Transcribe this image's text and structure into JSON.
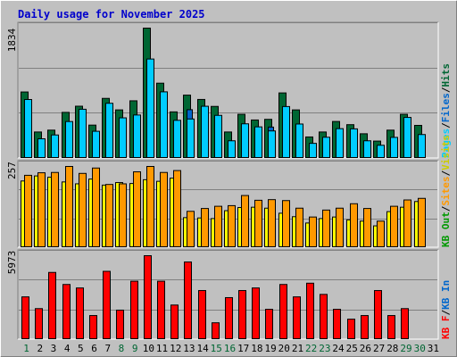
{
  "title": "Daily usage for November 2025",
  "colors": {
    "background": "#c0c0c0",
    "plot_bg": "#c0c0c0",
    "grid": "#808080",
    "title": "#0000cc",
    "hits": "#006633",
    "files": "#0066cc",
    "pages": "#00ccff",
    "visits": "#ffff00",
    "sites": "#ff9900",
    "kbytes": "#ff0000",
    "day_weekday": "#000000",
    "day_weekend": "#006633"
  },
  "chart_data": [
    {
      "type": "bar",
      "title": "Daily usage for November 2025",
      "ylabel": "Pages / Files / Hits",
      "ymax_label": "1834",
      "ylim": [
        0,
        1834
      ],
      "categories": [
        "1",
        "2",
        "3",
        "4",
        "5",
        "6",
        "7",
        "8",
        "9",
        "10",
        "11",
        "12",
        "13",
        "14",
        "15",
        "16",
        "17",
        "18",
        "19",
        "20",
        "21",
        "22",
        "23",
        "24",
        "25",
        "26",
        "27",
        "28",
        "29",
        "30",
        "31"
      ],
      "series": [
        {
          "name": "Hits",
          "values": [
            935,
            372,
            398,
            648,
            735,
            469,
            845,
            683,
            811,
            1834,
            1059,
            655,
            891,
            830,
            732,
            372,
            621,
            541,
            550,
            922,
            683,
            302,
            372,
            520,
            475,
            347,
            244,
            398,
            621,
            465,
            0
          ]
        },
        {
          "name": "Files",
          "values": [
            612,
            197,
            270,
            460,
            560,
            287,
            604,
            466,
            552,
            951,
            802,
            498,
            686,
            598,
            573,
            226,
            475,
            415,
            441,
            631,
            426,
            184,
            232,
            383,
            373,
            217,
            159,
            270,
            454,
            333,
            0
          ]
        },
        {
          "name": "Pages",
          "values": [
            829,
            276,
            330,
            519,
            692,
            382,
            776,
            571,
            611,
            1399,
            937,
            536,
            555,
            734,
            606,
            248,
            487,
            444,
            387,
            730,
            484,
            212,
            298,
            419,
            416,
            248,
            185,
            296,
            577,
            336,
            0
          ]
        }
      ]
    },
    {
      "type": "bar",
      "ylabel": "Visits / Sites",
      "ymax_label": "257",
      "ylim": [
        0,
        257
      ],
      "categories": [
        "1",
        "2",
        "3",
        "4",
        "5",
        "6",
        "7",
        "8",
        "9",
        "10",
        "11",
        "12",
        "13",
        "14",
        "15",
        "16",
        "17",
        "18",
        "19",
        "20",
        "21",
        "22",
        "23",
        "24",
        "25",
        "26",
        "27",
        "28",
        "29",
        "30",
        "31"
      ],
      "series": [
        {
          "name": "Visits",
          "values": [
            211,
            227,
            223,
            208,
            202,
            217,
            198,
            206,
            203,
            215,
            210,
            220,
            95,
            94,
            92,
            117,
            127,
            128,
            125,
            109,
            98,
            78,
            92,
            97,
            88,
            84,
            69,
            114,
            128,
            146,
            0
          ]
        },
        {
          "name": "Sites",
          "values": [
            229,
            237,
            238,
            257,
            235,
            252,
            200,
            202,
            240,
            257,
            238,
            244,
            115,
            124,
            131,
            133,
            165,
            150,
            152,
            149,
            125,
            97,
            119,
            125,
            139,
            124,
            84,
            131,
            151,
            156,
            0
          ]
        }
      ]
    },
    {
      "type": "bar",
      "ylabel": "KB F / KB In / KB Out",
      "ymax_label": "5973",
      "ylim": [
        0,
        5973
      ],
      "categories": [
        "1",
        "2",
        "3",
        "4",
        "5",
        "6",
        "7",
        "8",
        "9",
        "10",
        "11",
        "12",
        "13",
        "14",
        "15",
        "16",
        "17",
        "18",
        "19",
        "20",
        "21",
        "22",
        "23",
        "24",
        "25",
        "26",
        "27",
        "28",
        "29",
        "30",
        "31"
      ],
      "series": [
        {
          "name": "KB F",
          "values": [
            3042,
            2206,
            4782,
            3924,
            3677,
            1712,
            4860,
            2098,
            4156,
            5973,
            4156,
            2461,
            5526,
            3492,
            1197,
            2988,
            3492,
            3677,
            2156,
            3924,
            3042,
            4016,
            3217,
            2156,
            1454,
            1712,
            3492,
            1712,
            2206,
            0,
            0
          ]
        }
      ]
    }
  ],
  "legend": {
    "top": {
      "pages": "Pages",
      "sep1": "/",
      "files": "Files",
      "sep2": "/",
      "hits": "Hits"
    },
    "mid": {
      "visits": "Visits",
      "sep1": "/",
      "sites": "Sites",
      "sep2": "/",
      "kbout": "KB Out"
    },
    "bot": {
      "kbin": "KB In",
      "sep1": "/",
      "kbf": "KB F"
    }
  },
  "x_axis": {
    "days": [
      "1",
      "2",
      "3",
      "4",
      "5",
      "6",
      "7",
      "8",
      "9",
      "10",
      "11",
      "12",
      "13",
      "14",
      "15",
      "16",
      "17",
      "18",
      "19",
      "20",
      "21",
      "22",
      "23",
      "24",
      "25",
      "26",
      "27",
      "28",
      "29",
      "30",
      "31"
    ],
    "weekend": [
      1,
      8,
      9,
      15,
      16,
      22,
      23,
      29,
      30
    ]
  }
}
